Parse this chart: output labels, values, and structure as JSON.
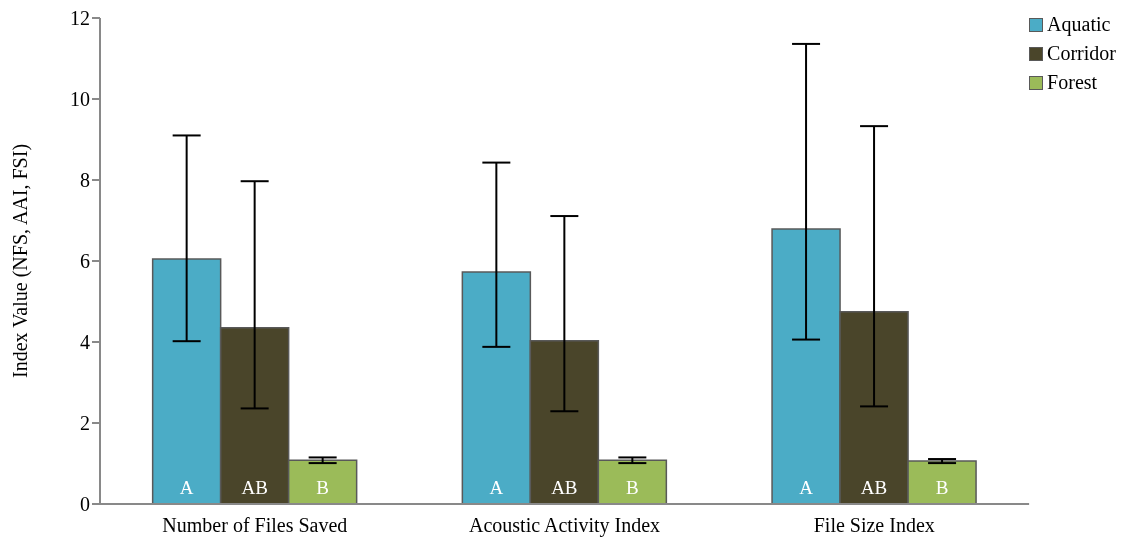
{
  "chart_data": {
    "type": "bar",
    "ylabel": "Index Value (NFS, AAI, FSI)",
    "categories": [
      "Number of Files Saved",
      "Acoustic Activity Index",
      "File Size Index"
    ],
    "series": [
      {
        "name": "Aquatic",
        "color": "#4bacc6",
        "values": [
          6.05,
          5.73,
          6.79
        ],
        "errors": [
          [
            4.02,
            9.1
          ],
          [
            3.88,
            8.43
          ],
          [
            4.06,
            11.36
          ]
        ],
        "value_labels": [
          "A",
          "A",
          "A"
        ]
      },
      {
        "name": "Corridor",
        "color": "#4a452a",
        "values": [
          4.35,
          4.03,
          4.75
        ],
        "errors": [
          [
            2.36,
            7.97
          ],
          [
            2.29,
            7.11
          ],
          [
            2.41,
            9.33
          ]
        ],
        "value_labels": [
          "AB",
          "AB",
          "AB"
        ]
      },
      {
        "name": "Forest",
        "color": "#9bbb59",
        "values": [
          1.08,
          1.08,
          1.06
        ],
        "errors": [
          [
            1.01,
            1.15
          ],
          [
            1.01,
            1.15
          ],
          [
            1.01,
            1.11
          ]
        ],
        "value_labels": [
          "B",
          "B",
          "B"
        ]
      }
    ],
    "ylim": [
      0,
      12
    ],
    "yticks": [
      0,
      2,
      4,
      6,
      8,
      10,
      12
    ],
    "grid": false,
    "legend": "top right"
  }
}
